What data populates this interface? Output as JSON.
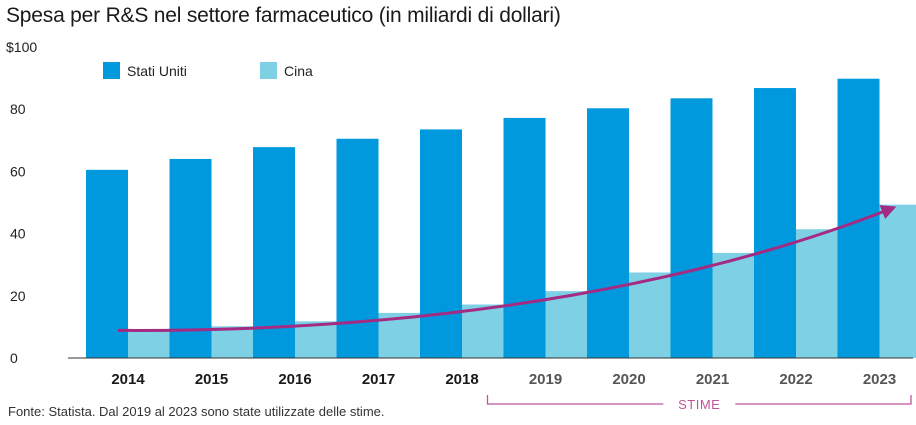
{
  "title": "Spesa per R&S nel settore farmaceutico (in miliardi di dollari)",
  "source": "Fonte: Statista. Dal 2019 al 2023 sono state utilizzate delle stime.",
  "estimate_label": "STIME",
  "colors": {
    "us": "#0099dd",
    "china": "#7ed0e4",
    "arrow": "#a52a82",
    "estimate_bracket": "#c0549a",
    "actual_year_text": "#1a1a1a",
    "estimate_year_text": "#555555",
    "axis": "#333333"
  },
  "chart_data": {
    "type": "bar",
    "categories": [
      "2014",
      "2015",
      "2016",
      "2017",
      "2018",
      "2019",
      "2020",
      "2021",
      "2022",
      "2023"
    ],
    "estimated_categories": [
      "2019",
      "2020",
      "2021",
      "2022",
      "2023"
    ],
    "series": [
      {
        "name": "Stati Uniti",
        "values": [
          60.5,
          64,
          67.8,
          70.5,
          73.5,
          77.2,
          80.3,
          83.5,
          86.8,
          89.8
        ]
      },
      {
        "name": "Cina",
        "values": [
          9.2,
          10.2,
          11.8,
          14.5,
          17.2,
          21.5,
          27.5,
          33.8,
          41.4,
          49.3
        ]
      }
    ],
    "y_tick_labels": [
      "0",
      "20",
      "40",
      "60",
      "80",
      "$100"
    ],
    "y_ticks": [
      0,
      20,
      40,
      60,
      80,
      100
    ],
    "ylim": [
      0,
      100
    ],
    "xlabel": "",
    "ylabel": "",
    "grid": false,
    "legend_position": "top-left",
    "trend_arrow": {
      "series": "Cina",
      "from": "2014",
      "to": "2023",
      "direction": "up"
    }
  }
}
